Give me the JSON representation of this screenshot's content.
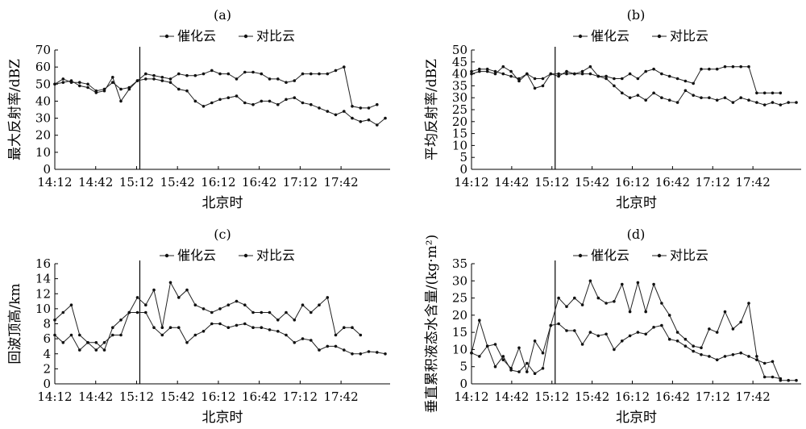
{
  "chart_data": [
    {
      "panel": "(a)",
      "type": "line",
      "xlabel": "北京时",
      "ylabel": "最大反射率/dBZ",
      "ylim": [
        0,
        70
      ],
      "yticks": [
        0,
        10,
        20,
        30,
        40,
        50,
        60,
        70
      ],
      "xticks": [
        "14:12",
        "14:42",
        "15:12",
        "15:42",
        "16:12",
        "16:42",
        "17:12",
        "17:42"
      ],
      "vline": "15:12",
      "legend": [
        "催化云",
        "对比云"
      ],
      "series": [
        {
          "name": "催化云",
          "values": [
            50,
            51,
            52,
            49,
            48,
            45,
            46,
            54,
            40,
            47,
            52,
            56,
            55,
            54,
            53,
            56,
            55,
            55,
            56,
            58,
            56,
            56,
            53,
            57,
            57,
            56,
            53,
            53,
            51,
            52,
            56,
            56,
            56,
            56,
            58,
            60,
            37,
            36,
            36,
            38
          ]
        },
        {
          "name": "对比云",
          "values": [
            50,
            53,
            51,
            51,
            50,
            46,
            47,
            51,
            47,
            48,
            52,
            53,
            53,
            52,
            51,
            47,
            46,
            40,
            37,
            39,
            41,
            42,
            43,
            39,
            38,
            40,
            40,
            38,
            41,
            42,
            39,
            38,
            36,
            34,
            32,
            34,
            30,
            28,
            29,
            26,
            30
          ]
        }
      ]
    },
    {
      "panel": "(b)",
      "type": "line",
      "xlabel": "北京时",
      "ylabel": "平均反射率/dBZ",
      "ylim": [
        0,
        50
      ],
      "yticks": [
        0,
        5,
        10,
        15,
        20,
        25,
        30,
        35,
        40,
        45,
        50
      ],
      "xticks": [
        "14:12",
        "14:42",
        "15:12",
        "15:42",
        "16:12",
        "16:42",
        "17:12",
        "17:42"
      ],
      "vline": "15:12",
      "legend": [
        "催化云",
        "对比云"
      ],
      "series": [
        {
          "name": "催化云",
          "values": [
            41,
            42,
            42,
            41,
            40,
            39,
            38,
            40,
            38,
            38,
            40,
            40,
            40,
            40,
            40,
            40,
            39,
            39,
            38,
            38,
            40,
            38,
            41,
            42,
            40,
            39,
            38,
            37,
            36,
            42,
            42,
            42,
            43,
            43,
            43,
            43,
            32,
            32,
            32,
            32
          ]
        },
        {
          "name": "对比云",
          "values": [
            40,
            41,
            41,
            40,
            43,
            41,
            37,
            40,
            34,
            35,
            40,
            39,
            41,
            40,
            41,
            43,
            39,
            38,
            35,
            32,
            30,
            31,
            29,
            32,
            30,
            29,
            28,
            33,
            31,
            30,
            30,
            29,
            30,
            28,
            30,
            29,
            28,
            27,
            28,
            27,
            28,
            28
          ]
        }
      ]
    },
    {
      "panel": "(c)",
      "type": "line",
      "xlabel": "北京时",
      "ylabel": "回波顶高/km",
      "ylim": [
        0,
        16
      ],
      "yticks": [
        0,
        2,
        4,
        6,
        8,
        10,
        12,
        14,
        16
      ],
      "xticks": [
        "14:12",
        "14:42",
        "15:12",
        "15:42",
        "16:12",
        "16:42",
        "17:12",
        "17:42"
      ],
      "vline": "15:12",
      "legend": [
        "催化云",
        "对比云"
      ],
      "series": [
        {
          "name": "催化云",
          "values": [
            8.5,
            9.5,
            10.5,
            6.5,
            5.5,
            5.5,
            4.5,
            7.5,
            8.5,
            9.5,
            11.5,
            10.5,
            12.5,
            7.5,
            13.5,
            11.5,
            12.5,
            10.5,
            10,
            9.5,
            10,
            10.5,
            11,
            10.5,
            9.5,
            9.5,
            9.5,
            8.5,
            9.5,
            8.5,
            10.5,
            9.5,
            10.5,
            11.5,
            6.5,
            7.5,
            7.5,
            6.5
          ]
        },
        {
          "name": "对比云",
          "values": [
            6.5,
            5.5,
            6.5,
            4.5,
            5.5,
            4.5,
            5.5,
            6.5,
            6.5,
            9.5,
            9.5,
            9.5,
            7.5,
            6.5,
            7.5,
            7.5,
            5.5,
            6.5,
            7,
            8,
            8,
            7.5,
            7.8,
            8,
            7.5,
            7.5,
            7.2,
            7,
            6.5,
            5.5,
            6,
            5.8,
            4.5,
            5,
            5,
            4.5,
            4,
            4,
            4.3,
            4.2,
            4
          ]
        }
      ]
    },
    {
      "panel": "(d)",
      "type": "line",
      "xlabel": "北京时",
      "ylabel": "垂直累积液态水含量/(kg·m²)",
      "ylim": [
        0,
        35
      ],
      "yticks": [
        0,
        5,
        10,
        15,
        20,
        25,
        30,
        35
      ],
      "xticks": [
        "14:12",
        "14:42",
        "15:12",
        "15:42",
        "16:12",
        "16:42",
        "17:12",
        "17:42"
      ],
      "vline": "15:12",
      "legend": [
        "催化云",
        "对比云"
      ],
      "series": [
        {
          "name": "催化云",
          "values": [
            9,
            18.5,
            11,
            11.5,
            7,
            4.5,
            10.5,
            3.5,
            12.5,
            9,
            17,
            25,
            22.5,
            25,
            23,
            30,
            25,
            23.5,
            24,
            29,
            21,
            29.5,
            21,
            29,
            23.5,
            20,
            15,
            13,
            11,
            10.5,
            16,
            15,
            21,
            16,
            18,
            23.5,
            8,
            2,
            2,
            1.5
          ]
        },
        {
          "name": "对比云",
          "values": [
            9,
            8,
            11,
            5,
            8,
            4,
            3.5,
            6,
            3,
            4.5,
            17,
            17.5,
            15.5,
            15.5,
            11.5,
            15,
            14,
            14.5,
            10,
            12.5,
            14,
            15,
            14.5,
            16.5,
            17,
            13,
            12.5,
            11,
            9.5,
            8.5,
            8,
            7,
            8,
            8.5,
            9,
            8,
            7,
            6,
            6.5,
            1,
            1,
            1
          ]
        }
      ]
    }
  ]
}
